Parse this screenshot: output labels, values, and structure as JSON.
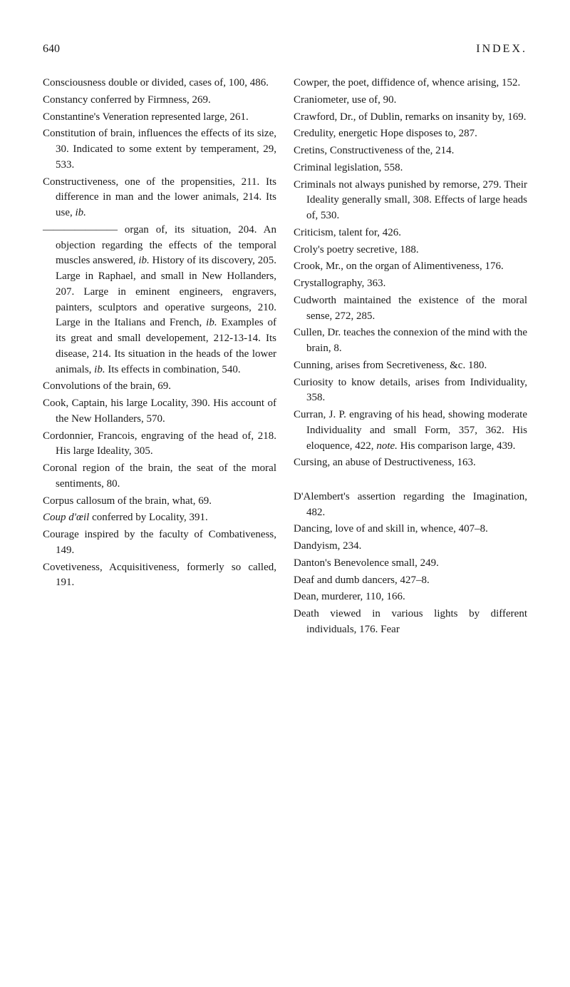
{
  "header": {
    "pageNumber": "640",
    "title": "INDEX."
  },
  "leftColumn": {
    "entries": [
      {
        "text": "Consciousness double or divided, cases of, 100, 486.",
        "class": "entry"
      },
      {
        "text": "Constancy conferred by Firmness, 269.",
        "class": "entry"
      },
      {
        "text": "Constantine's Veneration represented large, 261.",
        "class": "entry"
      },
      {
        "text": "Constitution of brain, influences the effects of its size, 30. Indicated to some extent by temperament, 29, 533.",
        "class": "entry"
      },
      {
        "text": "Constructiveness, one of the propensities, 211. Its difference in man and the lower animals, 214. Its use, ",
        "suffix": "ib.",
        "class": "entry"
      },
      {
        "text": "——————— organ of, its situation, 204. An objection regarding the effects of the temporal muscles answered, ",
        "mid": "ib.",
        "after": " History of its discovery, 205. Large in Raphael, and small in New Hollanders, 207. Large in eminent engineers, engravers, painters, sculptors and operative surgeons, 210. Large in the Italians and French, ",
        "mid2": "ib.",
        "after2": " Examples of its great and small developement, 212-13-14. Its disease, 214. Its situation in the heads of the lower animals, ",
        "mid3": "ib.",
        "after3": " Its effects in combination, 540.",
        "class": "entry"
      },
      {
        "text": "Convolutions of the brain, 69.",
        "class": "entry"
      },
      {
        "text": "Cook, Captain, his large Locality, 390. His account of the New Hollanders, 570.",
        "class": "entry"
      },
      {
        "text": "Cordonnier, Francois, engraving of the head of, 218. His large Ideality, 305.",
        "class": "entry"
      },
      {
        "text": "Coronal region of the brain, the seat of the moral sentiments, 80.",
        "class": "entry"
      },
      {
        "text": "Corpus callosum of the brain, what, 69.",
        "class": "entry"
      },
      {
        "prefix": "Coup d'œil",
        "text": " conferred by Locality, 391.",
        "class": "entry",
        "prefixItalic": true
      },
      {
        "text": "Courage inspired by the faculty of Combativeness, 149.",
        "class": "entry"
      },
      {
        "text": "Covetiveness, Acquisitiveness, formerly so called, 191.",
        "class": "entry"
      }
    ]
  },
  "rightColumn": {
    "entries": [
      {
        "text": "Cowper, the poet, diffidence of, whence arising, 152.",
        "class": "entry"
      },
      {
        "text": "Craniometer, use of, 90.",
        "class": "entry"
      },
      {
        "text": "Crawford, Dr., of Dublin, remarks on insanity by, 169.",
        "class": "entry"
      },
      {
        "text": "Credulity, energetic Hope disposes to, 287.",
        "class": "entry"
      },
      {
        "text": "Cretins, Constructiveness of the, 214.",
        "class": "entry"
      },
      {
        "text": "Criminal legislation, 558.",
        "class": "entry"
      },
      {
        "text": "Criminals not always punished by remorse, 279. Their Ideality generally small, 308. Effects of large heads of, 530.",
        "class": "entry"
      },
      {
        "text": "Criticism, talent for, 426.",
        "class": "entry"
      },
      {
        "text": "Croly's poetry secretive, 188.",
        "class": "entry"
      },
      {
        "text": "Crook, Mr., on the organ of Alimentiveness, 176.",
        "class": "entry"
      },
      {
        "text": "Crystallography, 363.",
        "class": "entry"
      },
      {
        "text": "Cudworth maintained the existence of the moral sense, 272, 285.",
        "class": "entry"
      },
      {
        "text": "Cullen, Dr. teaches the connexion of the mind with the brain, 8.",
        "class": "entry"
      },
      {
        "text": "Cunning, arises from Secretiveness, &c. 180.",
        "class": "entry"
      },
      {
        "text": "Curiosity to know details, arises from Individuality, 358.",
        "class": "entry"
      },
      {
        "text": "Curran, J. P. engraving of his head, showing moderate Individuality and small Form, 357, 362. His eloquence, 422, ",
        "mid": "note.",
        "after": " His comparison large, 439.",
        "class": "entry"
      },
      {
        "text": "Cursing, an abuse of Destructiveness, 163.",
        "class": "entry"
      },
      {
        "text": "",
        "class": "entry",
        "spacer": true
      },
      {
        "text": "D'Alembert's assertion regarding the Imagination, 482.",
        "class": "entry"
      },
      {
        "text": "Dancing, love of and skill in, whence, 407–8.",
        "class": "entry"
      },
      {
        "text": "Dandyism, 234.",
        "class": "entry"
      },
      {
        "text": "Danton's Benevolence small, 249.",
        "class": "entry"
      },
      {
        "text": "Deaf and dumb dancers, 427–8.",
        "class": "entry"
      },
      {
        "text": "Dean, murderer, 110, 166.",
        "class": "entry"
      },
      {
        "text": "Death viewed in various lights by different individuals, 176. Fear",
        "class": "entry"
      }
    ]
  },
  "styling": {
    "backgroundColor": "#ffffff",
    "textColor": "#1a1a1a",
    "fontSize": 15,
    "headerFontSize": 16,
    "lineHeight": 1.45
  }
}
